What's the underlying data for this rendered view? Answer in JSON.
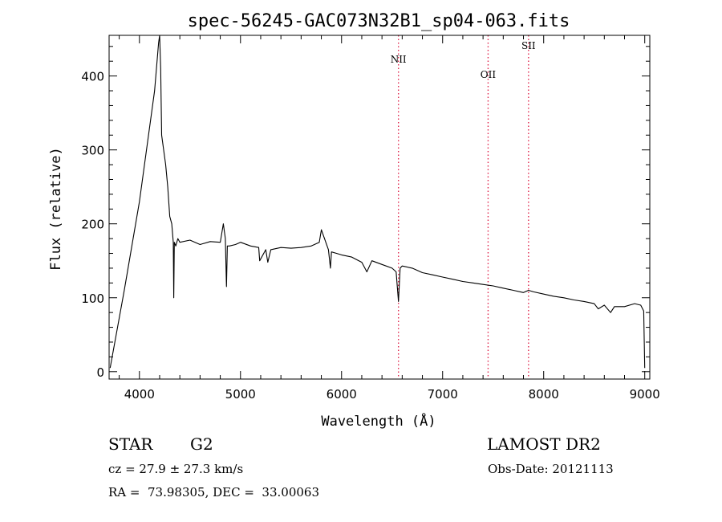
{
  "chart_data": {
    "type": "line",
    "title": "spec-56245-GAC073N32B1_sp04-063.fits",
    "xlabel": "Wavelength (Å)",
    "ylabel": "Flux (relative)",
    "xlim": [
      3700,
      9050
    ],
    "ylim": [
      -10,
      455
    ],
    "xticks": [
      4000,
      5000,
      6000,
      7000,
      8000,
      9000
    ],
    "yticks": [
      0,
      100,
      200,
      300,
      400
    ],
    "series": [
      {
        "x": [
          3710,
          3850,
          4000,
          4150,
          4190,
          4200,
          4210,
          4220,
          4240,
          4260,
          4280,
          4300,
          4320,
          4335,
          4340,
          4345,
          4360,
          4380,
          4400,
          4500,
          4600,
          4700,
          4800,
          4830,
          4850,
          4861,
          4870,
          4890,
          4950,
          5000,
          5100,
          5180,
          5190,
          5250,
          5270,
          5300,
          5400,
          5500,
          5600,
          5700,
          5780,
          5800,
          5870,
          5890,
          5900,
          5950,
          6000,
          6100,
          6200,
          6250,
          6300,
          6400,
          6500,
          6540,
          6563,
          6580,
          6600,
          6700,
          6800,
          6900,
          7000,
          7100,
          7200,
          7300,
          7400,
          7500,
          7600,
          7700,
          7800,
          7850,
          7900,
          8000,
          8100,
          8200,
          8300,
          8400,
          8500,
          8540,
          8600,
          8662,
          8700,
          8800,
          8900,
          8960,
          8990,
          8995,
          9000
        ],
        "y": [
          5,
          110,
          230,
          380,
          445,
          455,
          410,
          320,
          300,
          280,
          250,
          210,
          200,
          175,
          100,
          175,
          170,
          180,
          175,
          178,
          172,
          176,
          175,
          200,
          180,
          115,
          170,
          170,
          172,
          175,
          170,
          168,
          150,
          165,
          148,
          165,
          168,
          167,
          168,
          170,
          175,
          192,
          165,
          140,
          162,
          160,
          158,
          155,
          148,
          135,
          150,
          145,
          140,
          135,
          95,
          140,
          143,
          140,
          134,
          131,
          128,
          125,
          122,
          120,
          118,
          116,
          113,
          110,
          107,
          110,
          108,
          105,
          102,
          100,
          97,
          95,
          92,
          85,
          90,
          80,
          88,
          88,
          92,
          90,
          82,
          40,
          5
        ]
      }
    ]
  },
  "lines": [
    {
      "label": "NII",
      "wavelength": 6563
    },
    {
      "label": "OII",
      "wavelength": 7450
    },
    {
      "label": "SII",
      "wavelength": 7850
    }
  ],
  "info": {
    "object_class": "STAR",
    "subclass": "G2",
    "survey": "LAMOST DR2",
    "cz": "cz = 27.9 ± 27.3 km/s",
    "obs_date": "Obs-Date: 20121113",
    "radec": "RA =  73.98305, DEC =  33.00063"
  },
  "colors": {
    "axis": "#000000",
    "spectrum": "#000000",
    "lines": "#e0264d"
  }
}
